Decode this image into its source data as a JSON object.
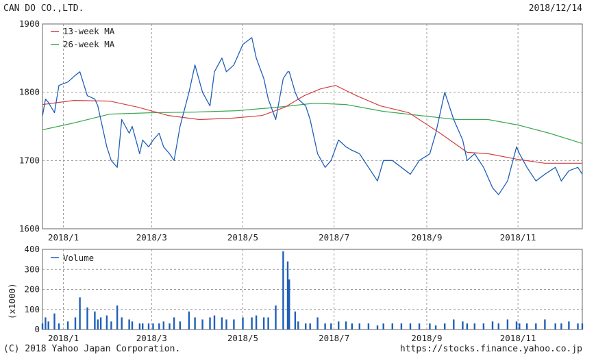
{
  "header": {
    "company": "CAN DO CO.,LTD.",
    "date": "2018/12/14"
  },
  "footer": {
    "copyright": "(C) 2018 Yahoo Japan Corporation.",
    "url": "https://stocks.finance.yahoo.co.jp"
  },
  "colors": {
    "price": "#1f5fb8",
    "ma13": "#d43f3f",
    "ma26": "#3aa852",
    "volume": "#1f5fb8",
    "grid": "#9a9a9a"
  },
  "chart_data": [
    {
      "type": "line",
      "ylim": [
        1600,
        1900
      ],
      "yticks": [
        1600,
        1700,
        1800,
        1900
      ],
      "xlim": [
        "2017-12-18",
        "2018-12-14"
      ],
      "xticks": [
        {
          "date": "2018-01-01",
          "label": "2018/1"
        },
        {
          "date": "2018-03-01",
          "label": "2018/3"
        },
        {
          "date": "2018-05-01",
          "label": "2018/5"
        },
        {
          "date": "2018-07-01",
          "label": "2018/7"
        },
        {
          "date": "2018-09-01",
          "label": "2018/9"
        },
        {
          "date": "2018-11-01",
          "label": "2018/11"
        }
      ],
      "grid": true,
      "legend_position": "top-left",
      "series": [
        {
          "key": "price",
          "x": [
            "2017-12-18",
            "2017-12-20",
            "2017-12-22",
            "2017-12-26",
            "2017-12-29",
            "2018-01-04",
            "2018-01-09",
            "2018-01-12",
            "2018-01-17",
            "2018-01-22",
            "2018-01-24",
            "2018-01-26",
            "2018-01-30",
            "2018-02-02",
            "2018-02-06",
            "2018-02-09",
            "2018-02-14",
            "2018-02-16",
            "2018-02-21",
            "2018-02-23",
            "2018-02-27",
            "2018-03-02",
            "2018-03-06",
            "2018-03-09",
            "2018-03-13",
            "2018-03-16",
            "2018-03-20",
            "2018-03-26",
            "2018-03-30",
            "2018-04-04",
            "2018-04-09",
            "2018-04-12",
            "2018-04-17",
            "2018-04-20",
            "2018-04-25",
            "2018-05-01",
            "2018-05-07",
            "2018-05-10",
            "2018-05-15",
            "2018-05-18",
            "2018-05-23",
            "2018-05-28",
            "2018-05-31",
            "2018-06-01",
            "2018-06-05",
            "2018-06-07",
            "2018-06-12",
            "2018-06-15",
            "2018-06-20",
            "2018-06-25",
            "2018-06-29",
            "2018-07-04",
            "2018-07-09",
            "2018-07-13",
            "2018-07-18",
            "2018-07-24",
            "2018-07-30",
            "2018-08-03",
            "2018-08-09",
            "2018-08-15",
            "2018-08-21",
            "2018-08-27",
            "2018-09-03",
            "2018-09-07",
            "2018-09-13",
            "2018-09-19",
            "2018-09-25",
            "2018-09-28",
            "2018-10-03",
            "2018-10-09",
            "2018-10-15",
            "2018-10-19",
            "2018-10-25",
            "2018-10-31",
            "2018-11-02",
            "2018-11-07",
            "2018-11-13",
            "2018-11-19",
            "2018-11-26",
            "2018-11-30",
            "2018-12-05",
            "2018-12-11",
            "2018-12-14"
          ],
          "y": [
            1765,
            1790,
            1785,
            1770,
            1810,
            1815,
            1825,
            1830,
            1795,
            1790,
            1780,
            1760,
            1720,
            1700,
            1690,
            1760,
            1740,
            1750,
            1710,
            1730,
            1720,
            1730,
            1740,
            1720,
            1710,
            1700,
            1750,
            1800,
            1840,
            1800,
            1780,
            1830,
            1850,
            1830,
            1840,
            1870,
            1880,
            1850,
            1820,
            1790,
            1760,
            1820,
            1830,
            1830,
            1800,
            1790,
            1780,
            1760,
            1710,
            1690,
            1700,
            1730,
            1720,
            1715,
            1710,
            1690,
            1670,
            1700,
            1700,
            1690,
            1680,
            1700,
            1710,
            1740,
            1800,
            1760,
            1730,
            1700,
            1710,
            1690,
            1660,
            1650,
            1670,
            1720,
            1710,
            1690,
            1670,
            1680,
            1690,
            1670,
            1685,
            1690,
            1680
          ]
        },
        {
          "key": "ma13",
          "name": "13-week MA",
          "x": [
            "2017-12-18",
            "2018-01-08",
            "2018-02-01",
            "2018-02-20",
            "2018-03-12",
            "2018-04-02",
            "2018-04-24",
            "2018-05-14",
            "2018-05-29",
            "2018-06-11",
            "2018-06-22",
            "2018-07-02",
            "2018-07-16",
            "2018-08-01",
            "2018-08-20",
            "2018-09-10",
            "2018-09-28",
            "2018-10-12",
            "2018-10-31",
            "2018-11-19",
            "2018-12-14"
          ],
          "y": [
            1782,
            1788,
            1787,
            1778,
            1766,
            1760,
            1762,
            1766,
            1778,
            1795,
            1805,
            1810,
            1795,
            1780,
            1770,
            1740,
            1712,
            1710,
            1702,
            1696,
            1696
          ]
        },
        {
          "key": "ma26",
          "name": "26-week MA",
          "x": [
            "2017-12-18",
            "2018-01-08",
            "2018-02-01",
            "2018-02-28",
            "2018-03-30",
            "2018-04-27",
            "2018-05-24",
            "2018-06-18",
            "2018-07-09",
            "2018-08-03",
            "2018-08-31",
            "2018-09-21",
            "2018-10-12",
            "2018-11-01",
            "2018-11-22",
            "2018-12-14"
          ],
          "y": [
            1745,
            1755,
            1768,
            1770,
            1771,
            1773,
            1778,
            1784,
            1782,
            1772,
            1765,
            1760,
            1760,
            1752,
            1740,
            1725
          ]
        }
      ]
    },
    {
      "type": "bar",
      "ylim": [
        0,
        400
      ],
      "yticks": [
        0,
        100,
        200,
        300,
        400
      ],
      "ylabel": "(x1000)",
      "series": [
        {
          "key": "volume",
          "name": "Volume",
          "x": [
            "2017-12-18",
            "2017-12-20",
            "2017-12-22",
            "2017-12-26",
            "2017-12-29",
            "2018-01-04",
            "2018-01-09",
            "2018-01-12",
            "2018-01-17",
            "2018-01-22",
            "2018-01-24",
            "2018-01-26",
            "2018-01-30",
            "2018-02-02",
            "2018-02-06",
            "2018-02-09",
            "2018-02-14",
            "2018-02-16",
            "2018-02-21",
            "2018-02-23",
            "2018-02-27",
            "2018-03-02",
            "2018-03-06",
            "2018-03-09",
            "2018-03-13",
            "2018-03-16",
            "2018-03-20",
            "2018-03-26",
            "2018-03-30",
            "2018-04-04",
            "2018-04-09",
            "2018-04-12",
            "2018-04-17",
            "2018-04-20",
            "2018-04-25",
            "2018-05-01",
            "2018-05-07",
            "2018-05-10",
            "2018-05-15",
            "2018-05-18",
            "2018-05-23",
            "2018-05-28",
            "2018-05-31",
            "2018-06-01",
            "2018-06-05",
            "2018-06-07",
            "2018-06-12",
            "2018-06-15",
            "2018-06-20",
            "2018-06-25",
            "2018-06-29",
            "2018-07-04",
            "2018-07-09",
            "2018-07-13",
            "2018-07-18",
            "2018-07-24",
            "2018-07-30",
            "2018-08-03",
            "2018-08-09",
            "2018-08-15",
            "2018-08-21",
            "2018-08-27",
            "2018-09-03",
            "2018-09-07",
            "2018-09-13",
            "2018-09-19",
            "2018-09-25",
            "2018-09-28",
            "2018-10-03",
            "2018-10-09",
            "2018-10-15",
            "2018-10-19",
            "2018-10-25",
            "2018-10-31",
            "2018-11-02",
            "2018-11-07",
            "2018-11-13",
            "2018-11-19",
            "2018-11-26",
            "2018-11-30",
            "2018-12-05",
            "2018-12-11",
            "2018-12-14"
          ],
          "values": [
            30,
            60,
            40,
            80,
            30,
            40,
            60,
            160,
            110,
            90,
            50,
            60,
            70,
            40,
            120,
            60,
            50,
            40,
            30,
            30,
            30,
            30,
            30,
            40,
            30,
            60,
            40,
            90,
            60,
            50,
            60,
            70,
            60,
            50,
            50,
            60,
            60,
            70,
            60,
            60,
            120,
            390,
            340,
            250,
            90,
            40,
            30,
            30,
            60,
            30,
            30,
            40,
            40,
            30,
            30,
            30,
            20,
            30,
            30,
            30,
            30,
            30,
            30,
            20,
            30,
            50,
            40,
            30,
            30,
            30,
            40,
            30,
            50,
            40,
            30,
            30,
            30,
            50,
            30,
            30,
            40,
            30,
            30
          ]
        }
      ]
    }
  ]
}
